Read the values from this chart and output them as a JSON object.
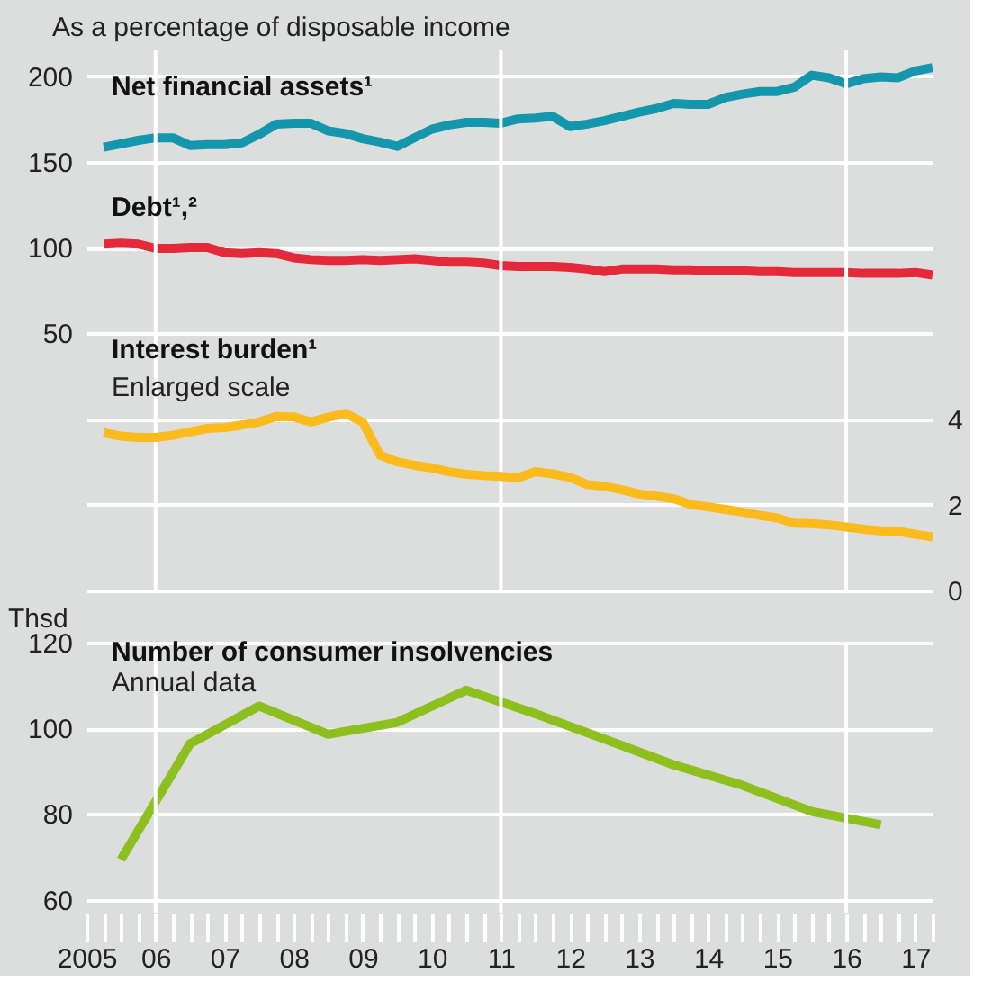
{
  "chart_data": [
    {
      "type": "line",
      "subtitle": "As a percentage of disposable income",
      "annotations": [
        "Enlarged scale"
      ],
      "xlim": [
        2005,
        2017.25
      ],
      "ylim": [
        -100,
        215
      ],
      "yticks": [
        50,
        100,
        150,
        200
      ],
      "y2lim": [
        0,
        12.6
      ],
      "y2ticks": [
        0,
        2,
        4
      ],
      "grid": "y",
      "legend": false,
      "tick_labels": "y",
      "line_style": "solid",
      "marker": "none",
      "x": [
        2005.25,
        2005.5,
        2005.75,
        2006,
        2006.25,
        2006.5,
        2006.75,
        2007,
        2007.25,
        2007.5,
        2007.75,
        2008,
        2008.25,
        2008.5,
        2008.75,
        2009,
        2009.25,
        2009.5,
        2009.75,
        2010,
        2010.25,
        2010.5,
        2010.75,
        2011,
        2011.25,
        2011.5,
        2011.75,
        2012,
        2012.25,
        2012.5,
        2012.75,
        2013,
        2013.25,
        2013.5,
        2013.75,
        2014,
        2014.25,
        2014.5,
        2014.75,
        2015,
        2015.25,
        2015.5,
        2015.75,
        2016,
        2016.25,
        2016.5,
        2016.75,
        2017,
        2017.25
      ],
      "series": [
        {
          "name": "Net financial assets¹",
          "color": "#1497ad",
          "values": [
            158.5,
            160.5,
            162.5,
            164,
            164,
            159.5,
            160,
            160,
            161,
            166,
            172,
            172.5,
            172.5,
            168,
            166.5,
            163.5,
            161.5,
            159,
            164,
            169,
            171.5,
            173,
            173,
            172.5,
            175,
            175.5,
            176.5,
            170.5,
            172,
            174,
            176.5,
            179,
            181,
            184,
            183.5,
            183.5,
            187.5,
            189.5,
            191,
            191,
            193.5,
            200.5,
            199,
            195.5,
            198.5,
            199.5,
            199,
            203,
            205
          ]
        },
        {
          "name": "Debt¹,²",
          "color": "#e42a3a",
          "values": [
            102,
            102.5,
            102,
            99.5,
            99.5,
            100,
            100,
            97,
            96.5,
            97,
            96.5,
            94,
            93,
            92.5,
            92.5,
            93,
            92.5,
            93,
            93.5,
            92.5,
            91.5,
            91.5,
            91,
            89.5,
            89,
            89,
            89,
            88.5,
            87.5,
            86,
            87.5,
            87.5,
            87.5,
            87,
            87,
            86.5,
            86.5,
            86.5,
            86,
            86,
            85.5,
            85.5,
            85.5,
            85.5,
            85,
            85,
            85,
            85.5,
            84
          ]
        },
        {
          "name": "Interest burden¹",
          "color": "#fbbb1d",
          "axis": "y2",
          "values": [
            3.68,
            3.6,
            3.57,
            3.57,
            3.62,
            3.7,
            3.78,
            3.8,
            3.86,
            3.93,
            4.06,
            4.05,
            3.93,
            4.04,
            4.13,
            3.93,
            3.16,
            3.0,
            2.92,
            2.86,
            2.77,
            2.71,
            2.68,
            2.66,
            2.63,
            2.77,
            2.72,
            2.64,
            2.47,
            2.43,
            2.35,
            2.25,
            2.2,
            2.14,
            2.0,
            1.95,
            1.89,
            1.83,
            1.75,
            1.69,
            1.57,
            1.56,
            1.53,
            1.48,
            1.43,
            1.39,
            1.38,
            1.31,
            1.25
          ]
        }
      ],
      "ref_lines": [
        {
          "axis": "x",
          "value": 2006,
          "color": "#ffffff"
        },
        {
          "axis": "x",
          "value": 2011,
          "color": "#ffffff"
        },
        {
          "axis": "x",
          "value": 2016,
          "color": "#ffffff"
        }
      ]
    },
    {
      "type": "line",
      "ylabel": "Thsd",
      "annotations": [
        "Annual data"
      ],
      "xlim": [
        2005,
        2017.25
      ],
      "ylim": [
        57,
        120
      ],
      "yticks": [
        60,
        80,
        100,
        120
      ],
      "grid": "y",
      "legend": false,
      "line_style": "solid",
      "marker": "none",
      "xticks": [
        {
          "value": 2005,
          "label": "2005"
        },
        {
          "value": 2005.25,
          "label": null
        },
        {
          "value": 2005.5,
          "label": null
        },
        {
          "value": 2005.75,
          "label": null
        },
        {
          "value": 2006,
          "label": "06"
        },
        {
          "value": 2006.25,
          "label": null
        },
        {
          "value": 2006.5,
          "label": null
        },
        {
          "value": 2006.75,
          "label": null
        },
        {
          "value": 2007,
          "label": "07"
        },
        {
          "value": 2007.25,
          "label": null
        },
        {
          "value": 2007.5,
          "label": null
        },
        {
          "value": 2007.75,
          "label": null
        },
        {
          "value": 2008,
          "label": "08"
        },
        {
          "value": 2008.25,
          "label": null
        },
        {
          "value": 2008.5,
          "label": null
        },
        {
          "value": 2008.75,
          "label": null
        },
        {
          "value": 2009,
          "label": "09"
        },
        {
          "value": 2009.25,
          "label": null
        },
        {
          "value": 2009.5,
          "label": null
        },
        {
          "value": 2009.75,
          "label": null
        },
        {
          "value": 2010,
          "label": "10"
        },
        {
          "value": 2010.25,
          "label": null
        },
        {
          "value": 2010.5,
          "label": null
        },
        {
          "value": 2010.75,
          "label": null
        },
        {
          "value": 2011,
          "label": "11"
        },
        {
          "value": 2011.25,
          "label": null
        },
        {
          "value": 2011.5,
          "label": null
        },
        {
          "value": 2011.75,
          "label": null
        },
        {
          "value": 2012,
          "label": "12"
        },
        {
          "value": 2012.25,
          "label": null
        },
        {
          "value": 2012.5,
          "label": null
        },
        {
          "value": 2012.75,
          "label": null
        },
        {
          "value": 2013,
          "label": "13"
        },
        {
          "value": 2013.25,
          "label": null
        },
        {
          "value": 2013.5,
          "label": null
        },
        {
          "value": 2013.75,
          "label": null
        },
        {
          "value": 2014,
          "label": "14"
        },
        {
          "value": 2014.25,
          "label": null
        },
        {
          "value": 2014.5,
          "label": null
        },
        {
          "value": 2014.75,
          "label": null
        },
        {
          "value": 2015,
          "label": "15"
        },
        {
          "value": 2015.25,
          "label": null
        },
        {
          "value": 2015.5,
          "label": null
        },
        {
          "value": 2015.75,
          "label": null
        },
        {
          "value": 2016,
          "label": "16"
        },
        {
          "value": 2016.25,
          "label": null
        },
        {
          "value": 2016.5,
          "label": null
        },
        {
          "value": 2016.75,
          "label": null
        },
        {
          "value": 2017,
          "label": "17"
        },
        {
          "value": 2017.25,
          "label": null
        }
      ],
      "x": [
        2005.5,
        2006.5,
        2007.5,
        2008.5,
        2009.5,
        2010.5,
        2011.5,
        2012.5,
        2013.5,
        2014.5,
        2015.5,
        2016.5
      ],
      "series": [
        {
          "name": "Number of consumer insolvencies",
          "color": "#8dbf1f",
          "values": [
            69.4,
            96.4,
            105.2,
            98.6,
            101.4,
            108.9,
            103.4,
            97.5,
            91.5,
            86.7,
            80.6,
            77.5
          ]
        }
      ],
      "ref_lines": [
        {
          "axis": "x",
          "value": 2006,
          "color": "#ffffff"
        },
        {
          "axis": "x",
          "value": 2011,
          "color": "#ffffff"
        },
        {
          "axis": "x",
          "value": 2016,
          "color": "#ffffff"
        }
      ]
    }
  ]
}
